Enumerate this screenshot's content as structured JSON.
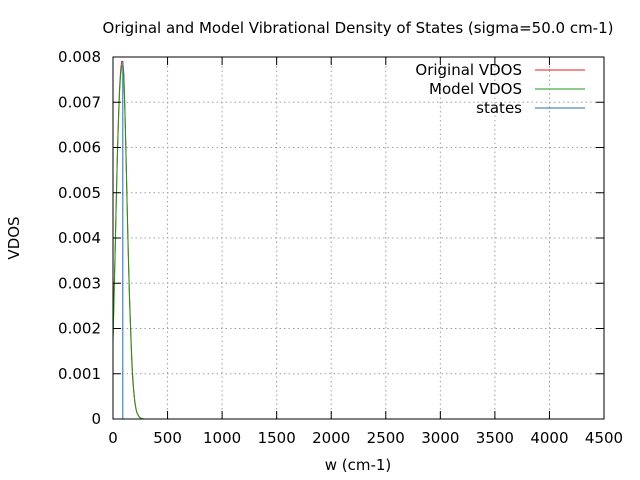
{
  "chart_data": {
    "type": "line",
    "title": "Original and Model Vibrational Density of States (sigma=50.0 cm-1)",
    "xlabel": "w (cm-1)",
    "ylabel": "VDOS",
    "xlim": [
      0,
      4500
    ],
    "ylim": [
      0,
      0.008
    ],
    "xticks": [
      0,
      500,
      1000,
      1500,
      2000,
      2500,
      3000,
      3500,
      4000,
      4500
    ],
    "xtick_labels": [
      "0",
      "500",
      "1000",
      "1500",
      "2000",
      "2500",
      "3000",
      "3500",
      "4000",
      "4500"
    ],
    "yticks": [
      0,
      0.001,
      0.002,
      0.003,
      0.004,
      0.005,
      0.006,
      0.007,
      0.008
    ],
    "ytick_labels": [
      "0",
      "0.001",
      "0.002",
      "0.003",
      "0.004",
      "0.005",
      "0.006",
      "0.007",
      "0.008"
    ],
    "grid": true,
    "legend_position": "top-right",
    "series": [
      {
        "name": "Original VDOS",
        "color": "#e41a1c",
        "x": [
          0,
          10,
          20,
          30,
          40,
          50,
          60,
          70,
          80,
          90,
          100,
          110,
          120,
          130,
          140,
          150,
          160,
          170,
          180,
          190,
          200,
          210,
          220,
          240,
          260,
          280,
          300
        ],
        "y": [
          0.0018,
          0.0028,
          0.0038,
          0.0049,
          0.0059,
          0.0067,
          0.0073,
          0.0077,
          0.0079,
          0.0079,
          0.0076,
          0.0068,
          0.0058,
          0.0047,
          0.0037,
          0.0028,
          0.0021,
          0.0015,
          0.001,
          0.00065,
          0.0004,
          0.00024,
          0.00014,
          5e-05,
          1e-05,
          0.0,
          0.0
        ]
      },
      {
        "name": "Model VDOS",
        "color": "#1a9a1a",
        "x": [
          0,
          10,
          20,
          30,
          40,
          50,
          60,
          70,
          80,
          90,
          100,
          110,
          120,
          130,
          140,
          150,
          160,
          170,
          180,
          190,
          200,
          210,
          220,
          240,
          260,
          280,
          300
        ],
        "y": [
          0.0017,
          0.0027,
          0.0037,
          0.0048,
          0.0058,
          0.0066,
          0.0072,
          0.0076,
          0.0078,
          0.0078,
          0.0075,
          0.0067,
          0.0057,
          0.0046,
          0.0036,
          0.0027,
          0.002,
          0.0014,
          0.0009,
          0.0006,
          0.00037,
          0.00022,
          0.00013,
          4e-05,
          1e-05,
          0.0,
          0.0
        ]
      },
      {
        "name": "states",
        "color": "#1f6fb4",
        "impulses": [
          {
            "x": 90,
            "y": 0.0079
          }
        ]
      }
    ]
  }
}
